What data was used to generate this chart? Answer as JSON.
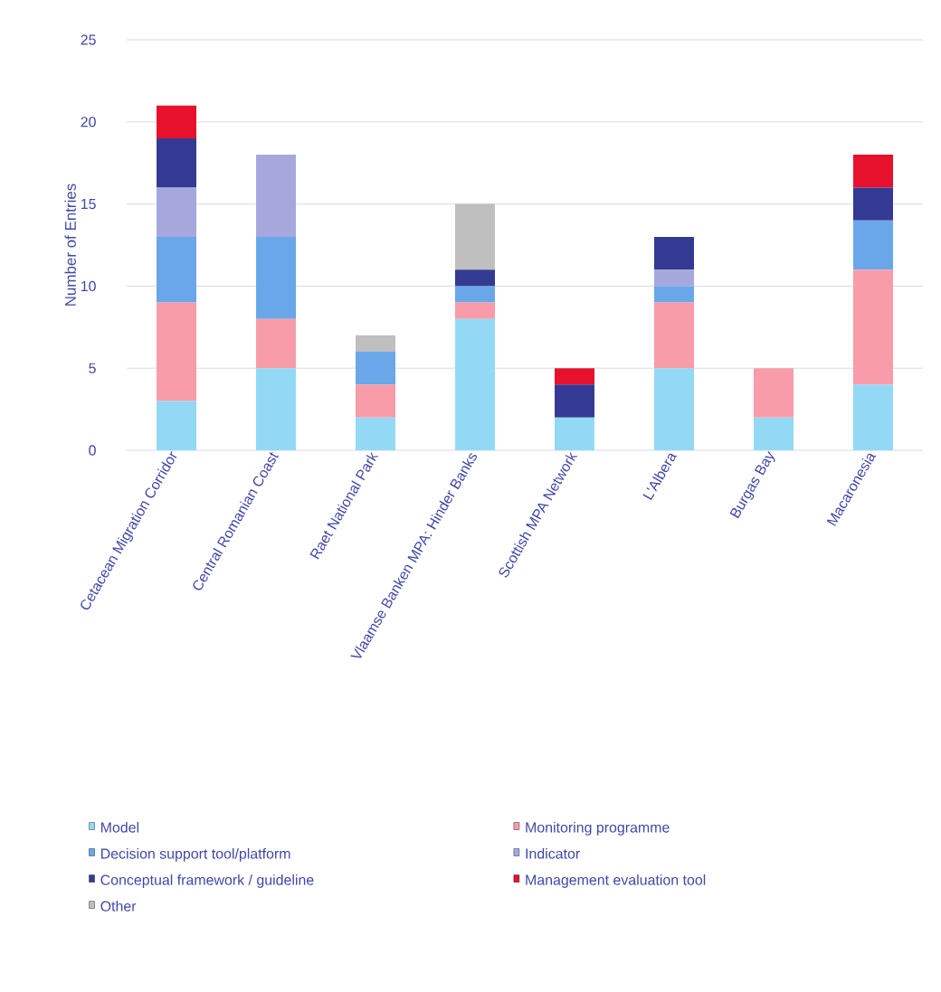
{
  "chart_data": {
    "type": "bar",
    "stacked": true,
    "ylabel": "Number of Entries",
    "categories": [
      "Cetacean Migration Corridor",
      "Central Romanian Coast",
      "Raet National Park",
      "Vlaamse Banken MPA: Hinder Banks",
      "Scottish MPA Network",
      "L'Albera",
      "Burgas Bay",
      "Macaronesia"
    ],
    "series": [
      {
        "name": "Model",
        "color": "#93d9f5",
        "values": [
          3,
          5,
          2,
          8,
          2,
          5,
          2,
          4
        ]
      },
      {
        "name": "Monitoring programme",
        "color": "#f89ca9",
        "values": [
          6,
          3,
          2,
          1,
          0,
          4,
          3,
          7
        ]
      },
      {
        "name": "Decision support tool/platform",
        "color": "#6aa7ea",
        "values": [
          4,
          5,
          2,
          1,
          0,
          1,
          0,
          3
        ]
      },
      {
        "name": "Indicator",
        "color": "#a6a8dd",
        "values": [
          3,
          5,
          0,
          0,
          0,
          1,
          0,
          0
        ]
      },
      {
        "name": "Conceptual framework / guideline",
        "color": "#343a93",
        "values": [
          3,
          0,
          0,
          1,
          2,
          2,
          0,
          2
        ]
      },
      {
        "name": "Management evaluation tool",
        "color": "#e8112d",
        "values": [
          2,
          0,
          0,
          0,
          1,
          0,
          0,
          2
        ]
      },
      {
        "name": "Other",
        "color": "#bfbfbf",
        "values": [
          0,
          0,
          1,
          4,
          0,
          0,
          0,
          0
        ]
      }
    ],
    "ylim": [
      0,
      25
    ],
    "yticks": [
      0,
      5,
      10,
      15,
      20,
      25
    ],
    "grid": "y",
    "legend": "bottom"
  }
}
